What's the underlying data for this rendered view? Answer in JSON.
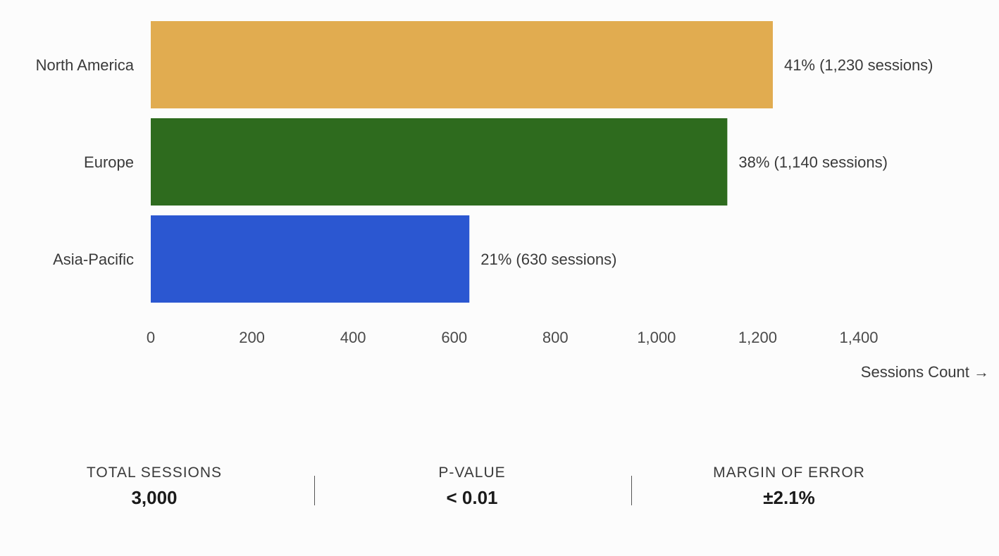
{
  "chart_data": {
    "type": "bar",
    "orientation": "horizontal",
    "categories": [
      "North America",
      "Europe",
      "Asia-Pacific"
    ],
    "values": [
      1230,
      1140,
      630
    ],
    "data_labels": [
      "41% (1,230 sessions)",
      "38% (1,140 sessions)",
      "21% (630 sessions)"
    ],
    "colors": [
      "#e1ac50",
      "#2e6b1e",
      "#2b57d1"
    ],
    "xlabel": "Sessions Count →",
    "ylabel": "",
    "xlim": [
      0,
      1400
    ],
    "x_ticks": [
      0,
      200,
      400,
      600,
      800,
      1000,
      1200,
      1400
    ],
    "x_tick_labels": [
      "0",
      "200",
      "400",
      "600",
      "800",
      "1,000",
      "1,200",
      "1,400"
    ],
    "grid": false,
    "legend": "none"
  },
  "stats": [
    {
      "label": "TOTAL SESSIONS",
      "value": "3,000"
    },
    {
      "label": "P-VALUE",
      "value": "< 0.01"
    },
    {
      "label": "MARGIN OF ERROR",
      "value": "±2.1%"
    }
  ]
}
